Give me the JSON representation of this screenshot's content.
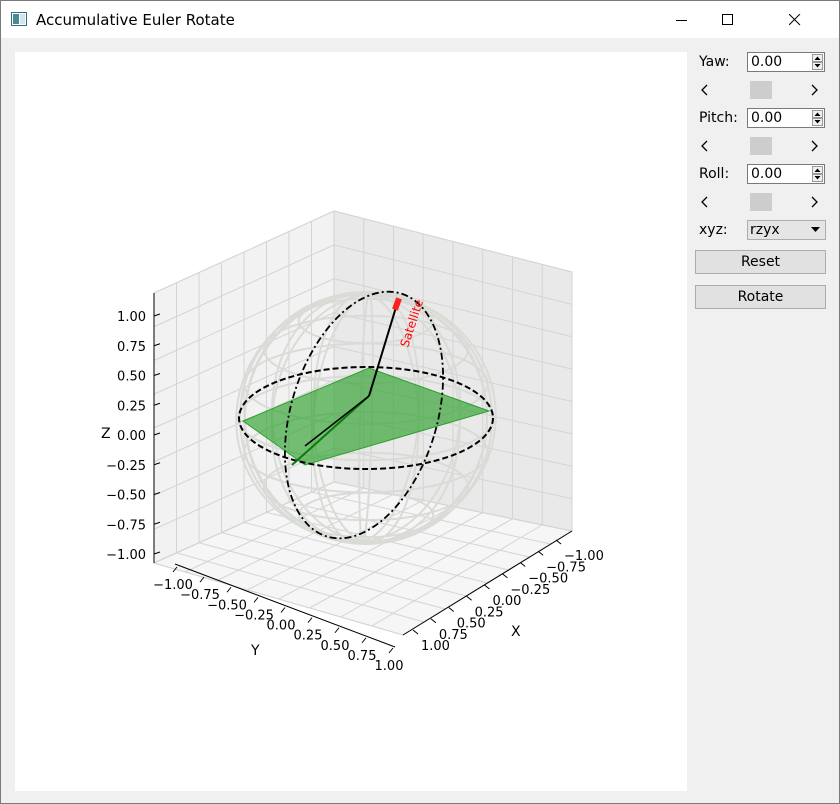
{
  "window": {
    "title": "Accumulative Euler Rotate",
    "icon": "app-window-icon"
  },
  "controls": {
    "yaw": {
      "label": "Yaw:",
      "value": "0.00"
    },
    "pitch": {
      "label": "Pitch:",
      "value": "0.00"
    },
    "roll": {
      "label": "Roll:",
      "value": "0.00"
    },
    "order": {
      "label": "xyz:",
      "value": "rzyx"
    },
    "reset_label": "Reset",
    "rotate_label": "Rotate"
  },
  "chart_data": {
    "type": "3d-wireframe-sphere",
    "xlabel": "X",
    "ylabel": "Y",
    "zlabel": "Z",
    "xlim": [
      -1.0,
      1.0
    ],
    "ylim": [
      -1.0,
      1.0
    ],
    "zlim": [
      -1.0,
      1.0
    ],
    "x_ticks": [
      "−1.00",
      "−0.75",
      "−0.50",
      "−0.25",
      "0.00",
      "0.25",
      "0.50",
      "0.75",
      "1.00"
    ],
    "y_ticks": [
      "−1.00",
      "−0.75",
      "−0.50",
      "−0.25",
      "0.00",
      "0.25",
      "0.50",
      "0.75",
      "1.00"
    ],
    "z_ticks": [
      "1.00",
      "0.75",
      "0.50",
      "0.25",
      "0.00",
      "−0.25",
      "−0.50",
      "−0.75",
      "−1.00"
    ],
    "annotation": "Satellite",
    "grid": true,
    "colors": {
      "sphere": "#d9dcd6",
      "plane": "#2ca02c",
      "orbit": "#000000",
      "satellite": "#ff0000"
    }
  }
}
